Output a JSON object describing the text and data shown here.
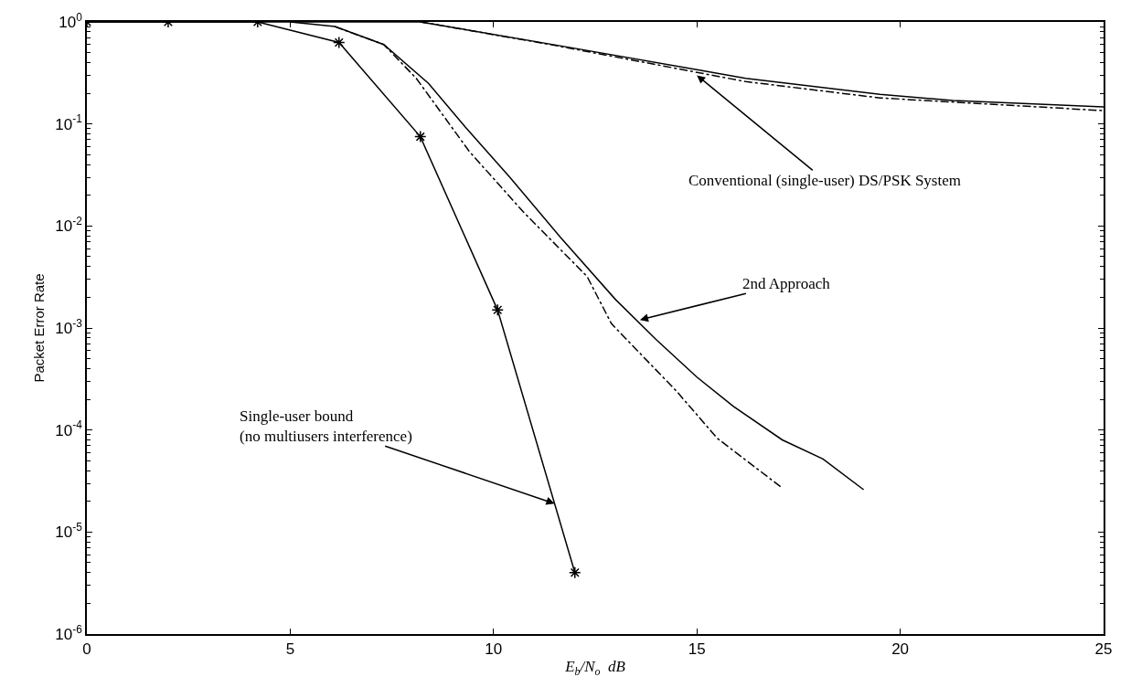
{
  "chart_data": {
    "type": "line",
    "xlabel": "E$_{b}$/N$_{o}$  dB",
    "ylabel": "Packet Error Rate",
    "log": "y",
    "xlim": [
      0,
      25
    ],
    "xticks": [
      0,
      5,
      10,
      15,
      20,
      25
    ],
    "ylim": [
      1e-06,
      1
    ],
    "yticks": [
      {
        "value": 1e-06,
        "label": "10$^{-6}$"
      },
      {
        "value": 1e-05,
        "label": "10$^{-5}$"
      },
      {
        "value": 0.0001,
        "label": "10$^{-4}$"
      },
      {
        "value": 0.001,
        "label": "10$^{-3}$"
      },
      {
        "value": 0.01,
        "label": "10$^{-2}$"
      },
      {
        "value": 0.1,
        "label": "10$^{-1}$"
      },
      {
        "value": 1,
        "label": "10$^{0}$"
      }
    ],
    "series": [
      {
        "color": "#000000",
        "marker": "cross",
        "line_style": "solid",
        "x": [
          0,
          2,
          4.2,
          6.2,
          8.2,
          10.1,
          12
        ],
        "values": [
          1,
          1,
          1,
          0.63,
          0.075,
          0.0015,
          4e-06
        ]
      },
      {
        "color": "#000000",
        "marker": "none",
        "line_style": "solid",
        "x": [
          5,
          6.1,
          7.3,
          8.4,
          9.3,
          10.4,
          11.65,
          13.0,
          14.0,
          15.0,
          15.9,
          17.1,
          18.1,
          19.1
        ],
        "values": [
          1,
          0.9,
          0.6,
          0.25,
          0.094,
          0.03,
          0.0077,
          0.0019,
          0.00077,
          0.00033,
          0.00017,
          8e-05,
          5.2e-05,
          2.6e-05
        ]
      },
      {
        "color": "#000000",
        "marker": "none",
        "line_style": "dashed",
        "x": [
          6.1,
          7.3,
          8.1,
          9.4,
          10.75,
          12.3,
          12.9,
          14.5,
          15.5,
          17.1
        ],
        "values": [
          0.9,
          0.6,
          0.28,
          0.054,
          0.0135,
          0.0032,
          0.0011,
          0.00024,
          8.3e-05,
          2.7e-05
        ]
      },
      {
        "color": "#000000",
        "marker": "none",
        "line_style": "solid",
        "x": [
          0,
          8.2,
          11.9,
          15.0,
          16.2,
          19.5,
          21.3,
          25
        ],
        "values": [
          1,
          1,
          0.56,
          0.34,
          0.28,
          0.195,
          0.17,
          0.147
        ]
      },
      {
        "color": "#000000",
        "marker": "none",
        "line_style": "dashed",
        "x": [
          8.2,
          11.4,
          16.2,
          19.5,
          25
        ],
        "values": [
          1,
          0.6,
          0.26,
          0.18,
          0.135
        ]
      }
    ],
    "annotations": [
      {
        "text": "Conventional (single-user) DS/PSK System",
        "x": 15.0,
        "y": 0.3
      },
      {
        "text": "2nd Approach",
        "x": 13.6,
        "y": 0.0012
      },
      {
        "text": "Single-user bound\n(no multiusers interference)",
        "x": 11.5,
        "y": 1.9e-05
      }
    ]
  }
}
